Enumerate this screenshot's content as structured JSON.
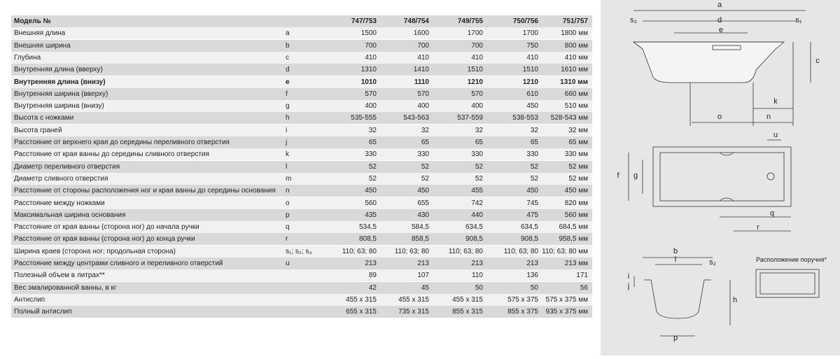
{
  "table": {
    "header": [
      "Модель №",
      "747/753",
      "748/754",
      "749/755",
      "750/756",
      "751/757"
    ],
    "rows": [
      {
        "label": "Внешняя длина",
        "symbol": "a",
        "cells": [
          "1500",
          "1600",
          "1700",
          "1700",
          "1800 мм"
        ]
      },
      {
        "label": "Внешняя ширина",
        "symbol": "b",
        "cells": [
          "700",
          "700",
          "700",
          "750",
          "800 мм"
        ]
      },
      {
        "label": "Глубина",
        "symbol": "c",
        "cells": [
          "410",
          "410",
          "410",
          "410",
          "410 мм"
        ]
      },
      {
        "label": "Внутренняя длина (вверху)",
        "symbol": "d",
        "cells": [
          "1310",
          "1410",
          "1510",
          "1510",
          "1610 мм"
        ]
      },
      {
        "label": "Внутренняя длина (внизу)",
        "symbol": "e",
        "cells": [
          "1010",
          "1110",
          "1210",
          "1210",
          "1310 мм"
        ],
        "bold": true
      },
      {
        "label": "Внутренняя ширина (вверху)",
        "symbol": "f",
        "cells": [
          "570",
          "570",
          "570",
          "610",
          "660 мм"
        ]
      },
      {
        "label": "Внутренняя ширина (внизу)",
        "symbol": "g",
        "cells": [
          "400",
          "400",
          "400",
          "450",
          "510 мм"
        ]
      },
      {
        "label": "Высота с ножками",
        "symbol": "h",
        "cells": [
          "535-555",
          "543-563",
          "537-559",
          "538-553",
          "528-543 мм"
        ]
      },
      {
        "label": "Высота граней",
        "symbol": "i",
        "cells": [
          "32",
          "32",
          "32",
          "32",
          "32 мм"
        ]
      },
      {
        "label": "Расстояние от верхнего края до середины переливного отверстия",
        "symbol": "j",
        "cells": [
          "65",
          "65",
          "65",
          "65",
          "65 мм"
        ]
      },
      {
        "label": "Расстояние от края ванны до середины сливного отверстия",
        "symbol": "k",
        "cells": [
          "330",
          "330",
          "330",
          "330",
          "330 мм"
        ]
      },
      {
        "label": "Диаметр переливного отверстия",
        "symbol": "l",
        "cells": [
          "52",
          "52",
          "52",
          "52",
          "52 мм"
        ]
      },
      {
        "label": "Диаметр сливного отверстия",
        "symbol": "m",
        "cells": [
          "52",
          "52",
          "52",
          "52",
          "52 мм"
        ]
      },
      {
        "label": "Расстояние от стороны расположения ног и края ванны до середины основания",
        "symbol": "n",
        "cells": [
          "450",
          "450",
          "455",
          "450",
          "450 мм"
        ]
      },
      {
        "label": "Расстояние между ножками",
        "symbol": "o",
        "cells": [
          "560",
          "655",
          "742",
          "745",
          "820 мм"
        ]
      },
      {
        "label": "Максимальная ширина основания",
        "symbol": "p",
        "cells": [
          "435",
          "430",
          "440",
          "475",
          "560 мм"
        ]
      },
      {
        "label": "Расстояние от края ванны (сторона ног) до начала ручки",
        "symbol": "q",
        "cells": [
          "534,5",
          "584,5",
          "634,5",
          "634,5",
          "684,5 мм"
        ]
      },
      {
        "label": "Расстояние от края ванны (сторона ног) до конца ручки",
        "symbol": "r",
        "cells": [
          "808,5",
          "858,5",
          "908,5",
          "908,5",
          "958,5 мм"
        ]
      },
      {
        "label": "Ширина краев (сторона ног; продольная сторона)",
        "symbol": "s₁; s₂; s₃",
        "cells": [
          "110; 63; 80",
          "110; 63; 80",
          "110; 63; 80",
          "110; 63; 80",
          "110; 63; 80 мм"
        ]
      },
      {
        "label": "Расстояние между центрами сливного и переливного отверстий",
        "symbol": "u",
        "cells": [
          "213",
          "213",
          "213",
          "213",
          "213 мм"
        ]
      },
      {
        "label": "Полезный объем в литрах**",
        "cells": [
          "89",
          "107",
          "110",
          "136",
          "171"
        ]
      },
      {
        "label": "Вес эмалированной ванны, в кг",
        "cells": [
          "42",
          "45",
          "50",
          "50",
          "56"
        ]
      },
      {
        "label": "Антислип",
        "cells": [
          "455 x 315",
          "455 x 315",
          "455 x 315",
          "575 x 375",
          "575 x 375 мм"
        ]
      },
      {
        "label": "Полный антислип",
        "cells": [
          "655 x 315",
          "735 x 315",
          "855 x 315",
          "855 x 375",
          "935 x 375 мм"
        ]
      }
    ]
  },
  "diagram": {
    "labels": [
      "a",
      "s₃",
      "d",
      "s₁",
      "e",
      "c",
      "k",
      "o",
      "n",
      "u",
      "f",
      "g",
      "q",
      "r",
      "b",
      "l",
      "s₂",
      "i",
      "j",
      "h",
      "p"
    ],
    "note": "Расположение поручня*"
  }
}
